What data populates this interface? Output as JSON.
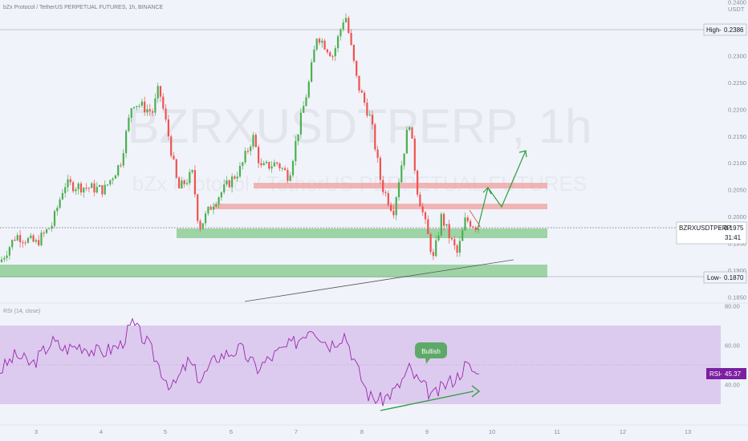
{
  "header": {
    "title": "bZx Protocol / TetherUS PERPETUAL FUTURES, 1h, BINANCE",
    "unit": "USDT"
  },
  "watermark": {
    "symbol": "BZRXUSDTPERP, 1h",
    "description": "bZx Protocol / TetherUS PERPETUAL FUTURES"
  },
  "colors": {
    "bull": "#26a69a",
    "up_candle": "#4caf50",
    "down_candle": "#ef5350",
    "support_zone": "#8fcc97",
    "resistance_zone": "#f0a8a8",
    "rsi_line": "#9c27b0",
    "rsi_band": "#d9c6ec",
    "projection_arrow": "#2e9e3f",
    "trend_line": "#555555"
  },
  "price_labels": {
    "high": {
      "label": "High",
      "value": "0.2386"
    },
    "low": {
      "label": "Low",
      "value": "0.1870"
    },
    "current": {
      "symbol": "BZRXUSDTPERP",
      "value": "0.1975",
      "countdown": "31:41"
    }
  },
  "rsi": {
    "title": "RSI (14, close)",
    "tag_label": "RSI",
    "tag_value": "45.37",
    "ticks": [
      "80.00",
      "60.00",
      "40.00"
    ]
  },
  "annotation": {
    "bullish_label": "Bullish"
  },
  "chart_data": {
    "type": "candlestick",
    "interval": "1h",
    "price_ticks": [
      "0.2400",
      "0.2350",
      "0.2300",
      "0.2250",
      "0.2200",
      "0.2150",
      "0.2100",
      "0.2050",
      "0.2000",
      "0.1950",
      "0.1900",
      "0.1850"
    ],
    "ylim": [
      0.1828,
      0.2404
    ],
    "x_ticks": [
      "3",
      "4",
      "5",
      "6",
      "7",
      "8",
      "9",
      "10",
      "11",
      "12",
      "13"
    ],
    "high": 0.2386,
    "low": 0.187,
    "last": 0.1975,
    "support_zones": [
      [
        0.1958,
        0.1975
      ],
      [
        0.187,
        0.1895
      ]
    ],
    "resistance_zones": [
      [
        0.2058,
        0.2066
      ],
      [
        0.2017,
        0.2024
      ]
    ],
    "rsi_last": 45.37,
    "rsi_band": [
      30,
      70
    ]
  }
}
